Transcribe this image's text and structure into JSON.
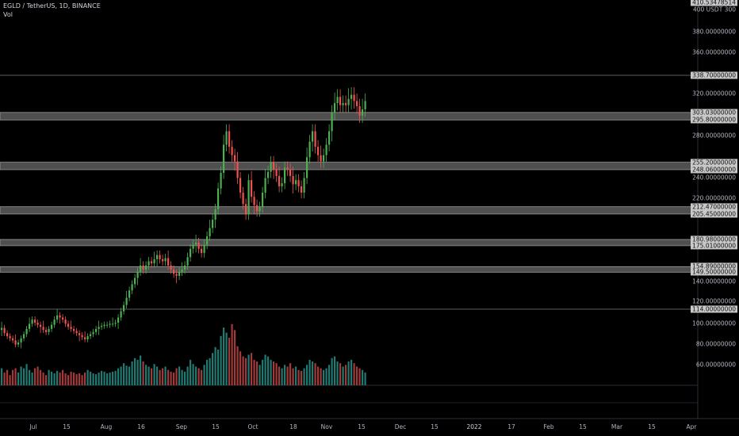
{
  "header": {
    "symbol_line": "EGLD / TetherUS, 1D, BINANCE",
    "indicator": "Vol"
  },
  "colors": {
    "up": "#4caf50",
    "down": "#ef5350",
    "vol_up": "#1f7a72",
    "vol_down": "#a33a3a",
    "zone": "#5d5d5d",
    "line": "#787b86"
  },
  "chart_data": {
    "type": "candlestick",
    "xlabel": "",
    "ylabel": "",
    "ylim": [
      40,
      420
    ],
    "x_ticks": [
      "Jul",
      "15",
      "Aug",
      "16",
      "Sep",
      "15",
      "Oct",
      "18",
      "Nov",
      "15",
      "Dec",
      "15",
      "2022",
      "17",
      "Feb",
      "15",
      "Mar",
      "15",
      "Apr"
    ],
    "y_ticks": [
      "400 USDT 300",
      "380.00000000",
      "360.00000000",
      "320.00000000",
      "280.00000000",
      "240.00000000",
      "220.00000000",
      "140.00000000",
      "120.00000000",
      "100.00000000",
      "80.00000000",
      "60.00000000"
    ],
    "price_labels": [
      "338.70000000",
      "303.03000000",
      "295.80000000",
      "255.20000000",
      "248.06000000",
      "212.47000000",
      "205.45000000",
      "180.98000000",
      "175.01000000",
      "154.89000000",
      "149.50000000",
      "114.00000000"
    ],
    "top_label": "410.53478514",
    "zones": [
      [
        295.8,
        303.03
      ],
      [
        248.06,
        255.2
      ],
      [
        205.45,
        212.47
      ],
      [
        175.01,
        180.98
      ],
      [
        149.5,
        154.89
      ]
    ],
    "lines": [
      338.7,
      114.0
    ],
    "close": [
      96,
      91,
      88,
      86,
      84,
      80,
      82,
      86,
      90,
      95,
      100,
      104,
      101,
      99,
      97,
      94,
      92,
      95,
      99,
      104,
      108,
      106,
      104,
      100,
      97,
      95,
      93,
      91,
      89,
      87,
      85,
      88,
      90,
      92,
      95,
      97,
      98,
      99,
      99,
      100,
      100,
      101,
      106,
      112,
      118,
      125,
      132,
      138,
      144,
      150,
      156,
      152,
      156,
      160,
      158,
      162,
      166,
      162,
      160,
      163,
      156,
      152,
      148,
      146,
      150,
      152,
      156,
      164,
      172,
      176,
      178,
      172,
      168,
      176,
      184,
      192,
      200,
      210,
      230,
      245,
      272,
      285,
      270,
      262,
      256,
      240,
      226,
      215,
      205,
      238,
      222,
      214,
      208,
      212,
      226,
      240,
      246,
      255,
      248,
      242,
      232,
      235,
      250,
      248,
      242,
      234,
      238,
      232,
      226,
      240,
      260,
      275,
      285,
      270,
      262,
      256,
      262,
      272,
      285,
      303,
      312,
      318,
      310,
      312,
      310,
      316,
      320,
      314,
      309,
      300,
      306,
      314
    ],
    "volume": [
      60,
      55,
      58,
      52,
      58,
      60,
      55,
      62,
      60,
      65,
      58,
      55,
      60,
      62,
      58,
      55,
      52,
      58,
      56,
      54,
      57,
      55,
      58,
      54,
      52,
      56,
      55,
      53,
      54,
      52,
      55,
      58,
      56,
      54,
      53,
      55,
      57,
      56,
      54,
      55,
      56,
      57,
      60,
      62,
      66,
      63,
      62,
      68,
      72,
      70,
      75,
      68,
      64,
      62,
      60,
      65,
      62,
      58,
      60,
      62,
      58,
      56,
      55,
      60,
      62,
      58,
      56,
      62,
      70,
      65,
      62,
      60,
      58,
      64,
      70,
      72,
      78,
      85,
      82,
      98,
      108,
      102,
      96,
      112,
      105,
      86,
      80,
      74,
      72,
      76,
      78,
      70,
      68,
      64,
      70,
      76,
      74,
      70,
      68,
      66,
      62,
      60,
      64,
      62,
      66,
      60,
      62,
      58,
      57,
      60,
      64,
      70,
      68,
      66,
      62,
      60,
      58,
      60,
      64,
      72,
      74,
      68,
      66,
      62,
      64,
      68,
      70,
      66,
      62,
      60,
      58,
      55
    ]
  }
}
